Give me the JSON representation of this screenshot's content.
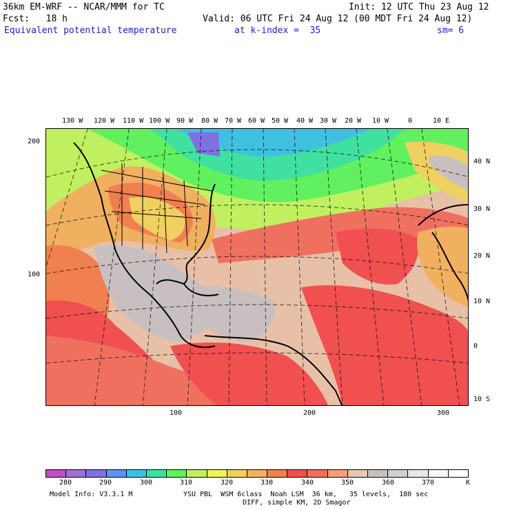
{
  "header": {
    "line1_left": "36km EM-WRF -- NCAR/MMM for TC",
    "line1_right": "Init: 12 UTC Thu 23 Aug 12",
    "line2_left": "Fcst:   18 h",
    "line2_right": "Valid: 06 UTC Fri 24 Aug 12 (00 MDT Fri 24 Aug 12)",
    "field": "Equivalent potential temperature",
    "level": "at k-index =  35",
    "smooth": "sm= 6"
  },
  "map": {
    "lon_labels": [
      "130 W",
      "120 W",
      "110 W",
      "100 W",
      "90 W",
      "80 W",
      "70 W",
      "60 W",
      "50 W",
      "40 W",
      "30 W",
      "20 W",
      "10 W",
      "0",
      "10 E"
    ],
    "lat_labels": [
      "40 N",
      "30 N",
      "20 N",
      "10 N",
      "0",
      "10 S"
    ],
    "y_grid_labels": [
      "200",
      "100"
    ],
    "x_grid_labels": [
      "100",
      "200",
      "300"
    ]
  },
  "colorbar": {
    "colors": [
      "#c050c0",
      "#a070d0",
      "#8070e0",
      "#6090f0",
      "#40c0e0",
      "#40e0a0",
      "#60f060",
      "#c0f060",
      "#f0f060",
      "#f0d060",
      "#f0b060",
      "#f08050",
      "#f05050",
      "#f07060",
      "#f0a080",
      "#e8c8b0",
      "#c8c0c0",
      "#d0d0d0",
      "#e8e8e8",
      "#f8f8f8",
      "#ffffff"
    ],
    "labels": [
      "280",
      "290",
      "300",
      "310",
      "320",
      "330",
      "340",
      "350",
      "360",
      "370"
    ],
    "unit": "K"
  },
  "footer": {
    "line1_left": "Model Info: V3.3.1 M",
    "line1_right": "YSU PBL  WSM 6class  Noah LSM  36 km,   35 levels,  180 sec",
    "line2": "DIFF, simple KM, 2D Smagor"
  }
}
